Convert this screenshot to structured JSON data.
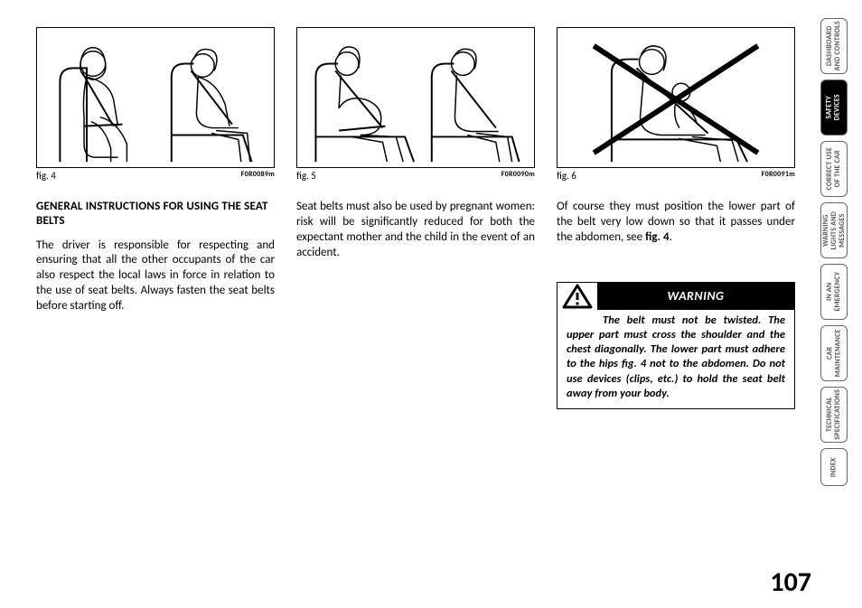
{
  "page_number": "107",
  "figures": {
    "f4": {
      "label": "fig. 4",
      "code": "F0R0089m"
    },
    "f5": {
      "label": "fig. 5",
      "code": "F0R0090m"
    },
    "f6": {
      "label": "fig. 6",
      "code": "F0R0091m"
    }
  },
  "col1": {
    "heading": "GENERAL INSTRUCTIONS FOR USING THE SEAT BELTS",
    "p1": "The driver is responsible for respecting and ensuring that all the other occupants of the car also respect the local laws in force in relation to the use of seat belts. Always fasten the seat belts before starting off."
  },
  "col2": {
    "p1": "Seat belts must also be used by pregnant women: risk will be significantly reduced for both the expectant mother and the child in the event of an accident."
  },
  "col3": {
    "p1_a": "Of course they must position the lower part of the belt very low down so that it passes under the abdomen, see ",
    "p1_b": "fig. 4",
    "p1_c": "."
  },
  "warning": {
    "label": "WARNING",
    "text": "The belt must not be twisted. The upper part must cross the shoulder and the chest diagonally. The lower part must adhere to the hips fig. 4 not to the abdomen. Do not use devices (clips, etc.) to hold the seat belt away from your body."
  },
  "tabs": [
    {
      "label": "DASHBOARD\nAND CONTROLS",
      "active": false
    },
    {
      "label": "SAFETY\nDEVICES",
      "active": true
    },
    {
      "label": "CORRECT USE\nOF THE CAR",
      "active": false
    },
    {
      "label": "WARNING\nLIGHTS AND\nMESSAGES",
      "active": false
    },
    {
      "label": "IN AN\nEMERGENCY",
      "active": false
    },
    {
      "label": "CAR\nMAINTENANCE",
      "active": false
    },
    {
      "label": "TECHNICAL\nSPECIFICATIONS",
      "active": false
    },
    {
      "label": "INDEX",
      "active": false,
      "short": true
    }
  ],
  "colors": {
    "text": "#000000",
    "bg": "#ffffff",
    "tab_border": "#666666",
    "tab_inactive_text": "#555555"
  }
}
